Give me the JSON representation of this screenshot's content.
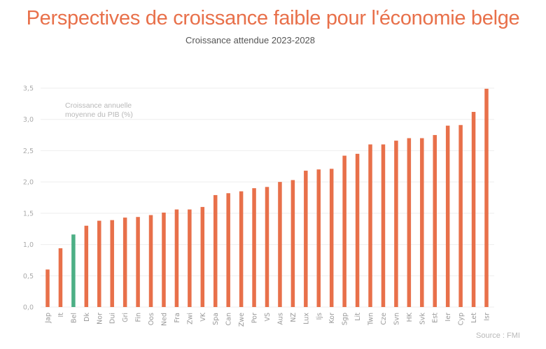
{
  "chart_data": {
    "type": "bar",
    "title": "Perspectives de croissance faible pour l'économie belge",
    "subtitle": "Croissance attendue 2023-2028",
    "ylabel": "Croissance annuelle moyenne du PIB (%)",
    "ylabel_lines": [
      "Croissance annuelle",
      "moyenne du PIB (%)"
    ],
    "xlabel": "",
    "source": "Source : FMI",
    "ylim": [
      0,
      3.5
    ],
    "yticks": [
      0,
      0.5,
      1.0,
      1.5,
      2.0,
      2.5,
      3.0,
      3.5
    ],
    "ytick_labels": [
      "0,0",
      "0,5",
      "1,0",
      "1,5",
      "2,0",
      "2,5",
      "3,0",
      "3,5"
    ],
    "grid": true,
    "legend": "none",
    "highlight_category": "Bel",
    "colors": {
      "default": "#e8704a",
      "highlight": "#4caf85",
      "grid": "#eeeeee"
    },
    "categories": [
      "Jap",
      "It",
      "Bel",
      "Dk",
      "Nor",
      "Dui",
      "Gri",
      "Fin",
      "Oos",
      "Ned",
      "Fra",
      "Zwi",
      "VK",
      "Spa",
      "Can",
      "Zwe",
      "Por",
      "VS",
      "Aus",
      "NZ",
      "Lux",
      "Ijs",
      "Kor",
      "Sgp",
      "Lit",
      "Twn",
      "Cze",
      "Svn",
      "HK",
      "Svk",
      "Est",
      "Ier",
      "Cyp",
      "Let",
      "Isr"
    ],
    "values": [
      0.6,
      0.94,
      1.16,
      1.3,
      1.38,
      1.39,
      1.43,
      1.44,
      1.47,
      1.51,
      1.56,
      1.56,
      1.6,
      1.79,
      1.82,
      1.85,
      1.9,
      1.92,
      2.0,
      2.03,
      2.18,
      2.2,
      2.21,
      2.42,
      2.45,
      2.6,
      2.6,
      2.66,
      2.7,
      2.7,
      2.75,
      2.9,
      2.91,
      3.12,
      3.49
    ]
  }
}
